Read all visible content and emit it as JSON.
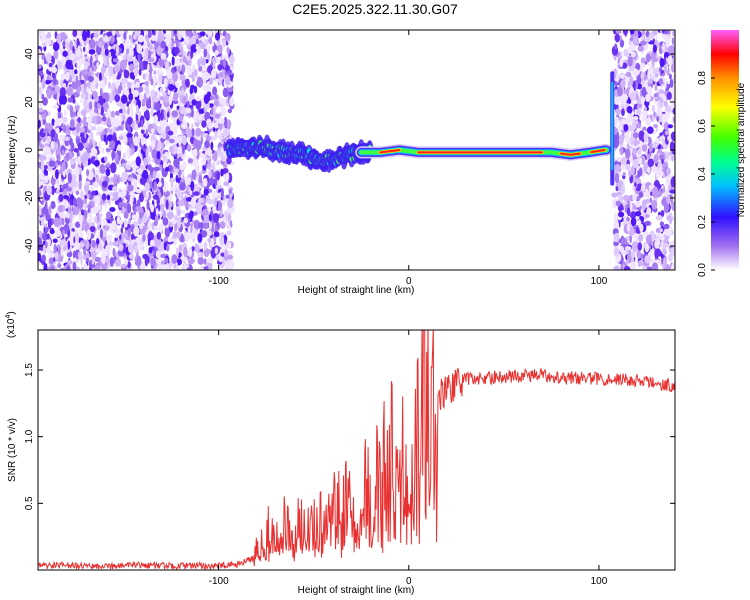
{
  "title": "C2E5.2025.322.11.30.G07",
  "colorbar_label": "Normalized spectral amplitude",
  "chart_data": [
    {
      "type": "heatmap",
      "title": "C2E5.2025.322.11.30.G07",
      "xlabel": "Height of straight line (km)",
      "ylabel": "Frequency (Hz)",
      "xlim": [
        -195,
        140
      ],
      "ylim": [
        -50,
        50
      ],
      "xticks": [
        -100,
        0,
        100
      ],
      "xtick_labels": [
        "-100",
        "0",
        "100"
      ],
      "yticks": [
        -40,
        -20,
        0,
        20,
        40
      ],
      "ytick_labels": [
        "-40",
        "-20",
        "0",
        "20",
        "40"
      ],
      "noise_regions": [
        [
          -195,
          -93
        ],
        [
          108,
          140
        ]
      ],
      "signal_ridge": {
        "x": [
          -95,
          -85,
          -75,
          -65,
          -55,
          -45,
          -35,
          -25,
          -15,
          -5,
          5,
          20,
          40,
          60,
          75,
          85,
          95,
          103
        ],
        "y": [
          0,
          1,
          1,
          -1,
          -2,
          -4,
          -3,
          -1,
          -1,
          0,
          -1,
          -1,
          -1,
          -1,
          -1,
          -2,
          -1,
          0
        ]
      },
      "colorbar": {
        "min": 0,
        "max": 1,
        "ticks": [
          0.0,
          0.2,
          0.4,
          0.6,
          0.8
        ],
        "tick_labels": [
          "0.0",
          "0.2",
          "0.4",
          "0.6",
          "0.8"
        ],
        "label": "Normalized spectral amplitude",
        "colors": [
          "#ffffff",
          "#a070f0",
          "#3010ff",
          "#00c0ff",
          "#00ff90",
          "#40ff00",
          "#ffff00",
          "#ff9000",
          "#ff0000",
          "#ff60ff"
        ]
      }
    },
    {
      "type": "line",
      "xlabel": "Height of straight line (km)",
      "ylabel": "SNR (10 * v/v)",
      "y_multiplier_label": "(x10",
      "y_multiplier_exponent": "4",
      "xlim": [
        -195,
        140
      ],
      "ylim": [
        0,
        18000
      ],
      "xticks": [
        -100,
        0,
        100
      ],
      "xtick_labels": [
        "-100",
        "0",
        "100"
      ],
      "yticks": [
        5000,
        10000,
        15000
      ],
      "ytick_labels": [
        "0.5",
        "1.0",
        "1.5"
      ],
      "series": [
        {
          "name": "SNR",
          "color": "#e83030",
          "x": [
            -195,
            -180,
            -160,
            -140,
            -120,
            -100,
            -90,
            -82,
            -78,
            -74,
            -70,
            -66,
            -62,
            -58,
            -54,
            -50,
            -46,
            -42,
            -38,
            -34,
            -30,
            -26,
            -22,
            -18,
            -14,
            -10,
            -6,
            -2,
            2,
            6,
            8,
            10,
            12,
            14,
            18,
            22,
            26,
            30,
            40,
            50,
            60,
            70,
            80,
            90,
            100,
            110,
            120,
            130,
            140
          ],
          "y": [
            300,
            350,
            300,
            350,
            300,
            300,
            400,
            900,
            2500,
            3500,
            2800,
            4000,
            3200,
            4500,
            3800,
            5200,
            4200,
            5800,
            4800,
            6500,
            5500,
            7200,
            6500,
            9000,
            8000,
            10500,
            9500,
            11000,
            10800,
            11600,
            12200,
            12600,
            12400,
            12800,
            13300,
            13700,
            14000,
            14300,
            14400,
            14500,
            14600,
            14600,
            14500,
            14400,
            14350,
            14300,
            14200,
            14000,
            13800
          ]
        }
      ]
    }
  ]
}
